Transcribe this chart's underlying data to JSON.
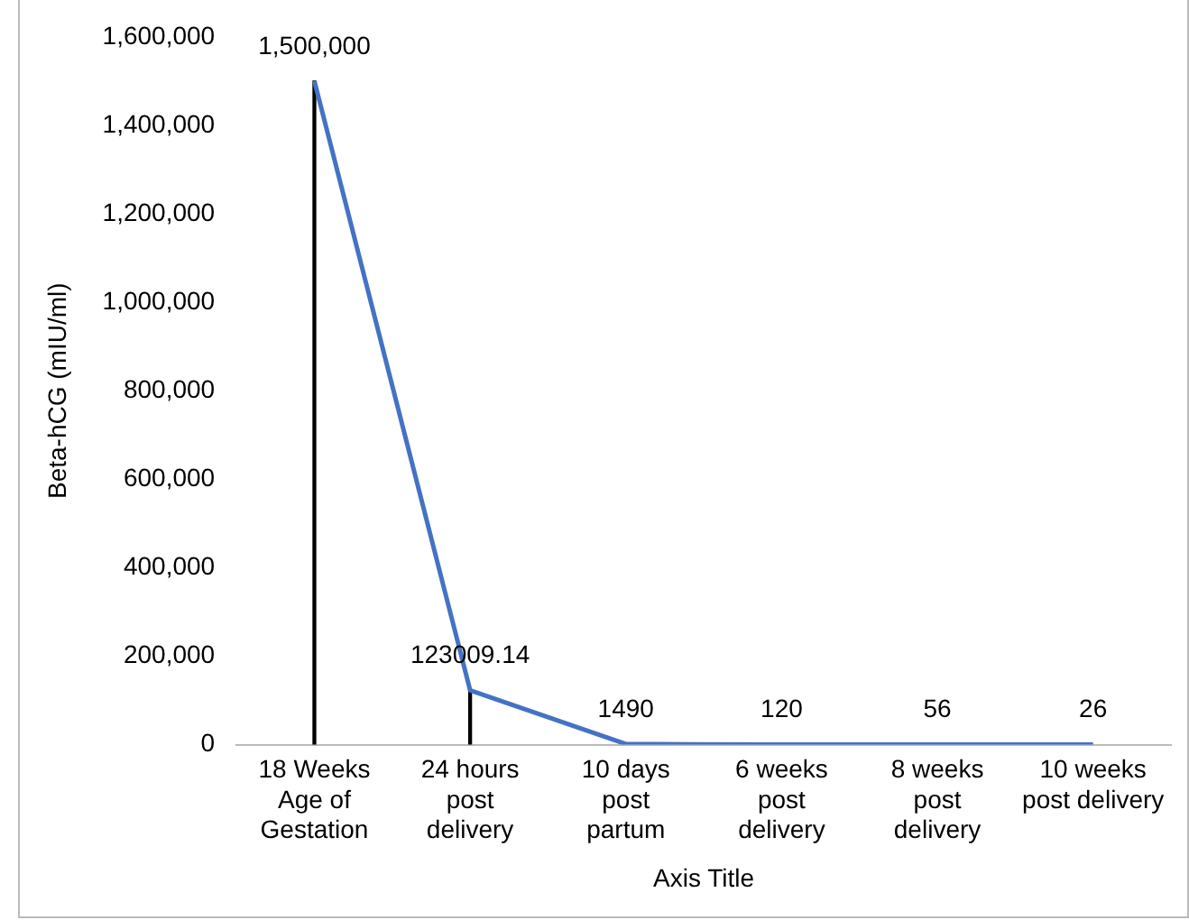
{
  "chart_data": {
    "type": "line",
    "xlabel": "Axis Title",
    "ylabel": "Beta-hCG (mIU/ml)",
    "categories": [
      "18 Weeks\nAge of\nGestation",
      "24 hours\npost\ndelivery",
      "10 days\npost\npartum",
      "6 weeks\npost\ndelivery",
      "8 weeks\npost\ndelivery",
      "10 weeks\npost delivery"
    ],
    "series": [
      {
        "color": "#4472c4",
        "values": [
          1500000,
          123009.14,
          1490,
          120,
          56,
          26
        ],
        "value_labels": [
          "1,500,000",
          "123009.14",
          "1490",
          "120",
          "56",
          "26"
        ]
      },
      {
        "type": "bar",
        "color": "#000000",
        "values": [
          1500000,
          123009.14,
          null,
          null,
          null,
          null
        ]
      }
    ],
    "ylim": [
      0,
      1600000
    ],
    "yticks": [
      {
        "value": 0,
        "label": "0"
      },
      {
        "value": 200000,
        "label": "200,000"
      },
      {
        "value": 400000,
        "label": "400,000"
      },
      {
        "value": 600000,
        "label": "600,000"
      },
      {
        "value": 800000,
        "label": "800,000"
      },
      {
        "value": 1000000,
        "label": "1,000,000"
      },
      {
        "value": 1200000,
        "label": "1,200,000"
      },
      {
        "value": 1400000,
        "label": "1,400,000"
      },
      {
        "value": 1600000,
        "label": "1,600,000"
      }
    ],
    "grid": false,
    "legend": false,
    "marker": "none",
    "line_style": "solid"
  }
}
